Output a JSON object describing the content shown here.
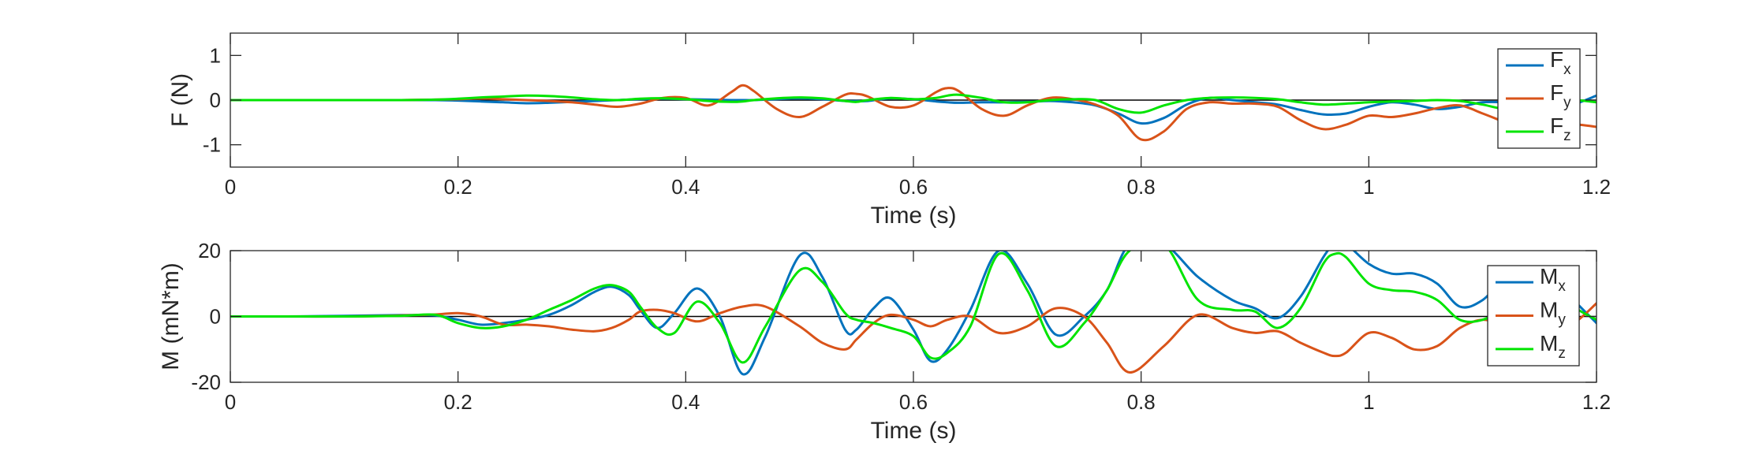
{
  "chart_data": [
    {
      "type": "line",
      "title": "",
      "xlabel": "Time (s)",
      "ylabel": "F (N)",
      "xlim": [
        0,
        1.2
      ],
      "ylim": [
        -1.5,
        1.5
      ],
      "xticks": [
        0,
        0.2,
        0.4,
        0.6,
        0.8,
        1,
        1.2
      ],
      "xtick_labels": [
        "0",
        "0.2",
        "0.4",
        "0.6",
        "0.8",
        "1",
        "1.2"
      ],
      "yticks": [
        1,
        0,
        -1
      ],
      "ytick_labels": [
        "1",
        "0",
        "-1"
      ],
      "zero_line": true,
      "grid": false,
      "legend_position": "right",
      "x": [
        0,
        0.05,
        0.1,
        0.15,
        0.18,
        0.2,
        0.22,
        0.24,
        0.26,
        0.28,
        0.3,
        0.32,
        0.34,
        0.36,
        0.38,
        0.4,
        0.42,
        0.44,
        0.45,
        0.46,
        0.48,
        0.5,
        0.52,
        0.54,
        0.55,
        0.56,
        0.58,
        0.6,
        0.62,
        0.63,
        0.64,
        0.66,
        0.68,
        0.7,
        0.72,
        0.74,
        0.76,
        0.78,
        0.8,
        0.82,
        0.84,
        0.86,
        0.88,
        0.9,
        0.92,
        0.94,
        0.96,
        0.98,
        1,
        1.02,
        1.04,
        1.06,
        1.08,
        1.1,
        1.12,
        1.14,
        1.16,
        1.18,
        1.2
      ],
      "series": [
        {
          "name": "F_x",
          "label_main": "F",
          "label_sub": "x",
          "color": "#0072BD",
          "values": [
            0,
            0,
            0,
            0,
            0,
            -0.01,
            -0.03,
            -0.05,
            -0.07,
            -0.06,
            -0.04,
            -0.02,
            0,
            0.02,
            0.03,
            0.02,
            0.01,
            0,
            0,
            0,
            0.02,
            0.04,
            0.02,
            -0.02,
            -0.02,
            -0.02,
            0.04,
            0.02,
            -0.03,
            -0.05,
            -0.06,
            -0.05,
            -0.05,
            -0.04,
            -0.02,
            -0.05,
            -0.12,
            -0.3,
            -0.52,
            -0.4,
            -0.1,
            0.05,
            0,
            -0.05,
            -0.1,
            -0.22,
            -0.32,
            -0.3,
            -0.15,
            -0.05,
            -0.1,
            -0.2,
            -0.15,
            -0.05,
            -0.05,
            -0.1,
            -0.25,
            -0.1,
            0.1
          ]
        },
        {
          "name": "F_y",
          "label_main": "F",
          "label_sub": "y",
          "color": "#D95319",
          "values": [
            0,
            0,
            0,
            0,
            0.01,
            0.02,
            0.04,
            0.02,
            0,
            -0.02,
            -0.05,
            -0.1,
            -0.15,
            -0.08,
            0.05,
            0.05,
            -0.12,
            0.18,
            0.33,
            0.2,
            -0.2,
            -0.38,
            -0.15,
            0.12,
            0.14,
            0.08,
            -0.15,
            -0.12,
            0.18,
            0.27,
            0.2,
            -0.2,
            -0.35,
            -0.12,
            0.05,
            0.02,
            -0.1,
            -0.35,
            -0.88,
            -0.7,
            -0.2,
            -0.05,
            -0.08,
            -0.08,
            -0.15,
            -0.45,
            -0.65,
            -0.55,
            -0.35,
            -0.38,
            -0.3,
            -0.18,
            -0.12,
            -0.3,
            -0.5,
            -0.7,
            -0.65,
            -0.55,
            -0.6
          ]
        },
        {
          "name": "F_z",
          "label_main": "F",
          "label_sub": "z",
          "color": "#00E400",
          "values": [
            0,
            0,
            0,
            0,
            0.01,
            0.03,
            0.06,
            0.08,
            0.1,
            0.09,
            0.06,
            0.02,
            0,
            0.03,
            0.04,
            0.02,
            -0.02,
            -0.04,
            -0.03,
            0,
            0.04,
            0.06,
            0.04,
            -0.02,
            -0.04,
            0,
            0.05,
            0.02,
            0.05,
            0.1,
            0.12,
            0.05,
            -0.05,
            -0.05,
            0,
            0.02,
            0,
            -0.2,
            -0.28,
            -0.12,
            0,
            0.05,
            0.06,
            0.05,
            0.02,
            -0.05,
            -0.1,
            -0.08,
            -0.05,
            -0.03,
            -0.02,
            0,
            -0.02,
            -0.1,
            -0.2,
            -0.15,
            -0.05,
            0,
            -0.05
          ]
        }
      ]
    },
    {
      "type": "line",
      "title": "",
      "xlabel": "Time (s)",
      "ylabel": "M (mN*m)",
      "xlim": [
        0,
        1.2
      ],
      "ylim": [
        -20,
        20
      ],
      "xticks": [
        0,
        0.2,
        0.4,
        0.6,
        0.8,
        1,
        1.2
      ],
      "xtick_labels": [
        "0",
        "0.2",
        "0.4",
        "0.6",
        "0.8",
        "1",
        "1.2"
      ],
      "yticks": [
        20,
        0,
        -20
      ],
      "ytick_labels": [
        "20",
        "0",
        "-20"
      ],
      "zero_line": true,
      "grid": false,
      "legend_position": "right",
      "x": [
        0,
        0.05,
        0.1,
        0.15,
        0.18,
        0.2,
        0.22,
        0.24,
        0.26,
        0.28,
        0.3,
        0.32,
        0.335,
        0.35,
        0.36,
        0.375,
        0.39,
        0.41,
        0.43,
        0.45,
        0.47,
        0.5,
        0.52,
        0.54,
        0.55,
        0.565,
        0.58,
        0.6,
        0.615,
        0.63,
        0.65,
        0.675,
        0.7,
        0.725,
        0.75,
        0.77,
        0.79,
        0.82,
        0.85,
        0.88,
        0.9,
        0.92,
        0.94,
        0.96,
        0.97,
        0.98,
        1,
        1.02,
        1.04,
        1.06,
        1.08,
        1.1,
        1.12,
        1.14,
        1.16,
        1.18,
        1.2
      ],
      "series": [
        {
          "name": "M_x",
          "label_main": "M",
          "label_sub": "x",
          "color": "#0072BD",
          "values": [
            0,
            0,
            0.2,
            0.4,
            0.3,
            -1,
            -2.5,
            -2,
            -1,
            0.5,
            3.5,
            7.5,
            9,
            6.5,
            2,
            -3.5,
            1,
            8.5,
            0,
            -17.5,
            -6,
            18.5,
            12,
            -4,
            -4,
            2.5,
            5.5,
            -4,
            -13.5,
            -10,
            2,
            20,
            10,
            -5.5,
            0,
            8,
            22,
            22,
            12,
            5,
            2.5,
            -0.5,
            6,
            18,
            22,
            22,
            16,
            13,
            13,
            10,
            3,
            5,
            12,
            15,
            13,
            5,
            -2
          ]
        },
        {
          "name": "M_y",
          "label_main": "M",
          "label_sub": "y",
          "color": "#D95319",
          "values": [
            0,
            0,
            0,
            0.3,
            0.6,
            1,
            0,
            -2.5,
            -2.5,
            -3,
            -4,
            -4.5,
            -3.5,
            -1,
            1.5,
            2,
            1,
            -1.5,
            1,
            3,
            3,
            -3,
            -8,
            -10,
            -7,
            -2,
            0.5,
            -1,
            -3,
            -1,
            0,
            -5,
            -3,
            2.5,
            0,
            -8,
            -17,
            -9,
            0.5,
            -3.5,
            -5,
            -4.5,
            -8,
            -11,
            -12,
            -11,
            -5,
            -6.5,
            -10,
            -9,
            -3.5,
            -1,
            -3,
            -5,
            -4,
            -2,
            4
          ]
        },
        {
          "name": "M_z",
          "label_main": "M",
          "label_sub": "z",
          "color": "#00E400",
          "values": [
            0,
            0,
            0,
            0.2,
            0.5,
            -2,
            -3.5,
            -3,
            -1,
            2,
            5,
            8.5,
            9.5,
            7.5,
            3,
            -3.5,
            -5,
            4.5,
            -2,
            -14,
            -3,
            14,
            10.5,
            1,
            -1,
            -2,
            -3.5,
            -6,
            -12.5,
            -11,
            -3,
            19,
            8,
            -9,
            -2,
            8,
            20,
            22,
            5,
            2,
            1.5,
            -3.5,
            2.5,
            16,
            19,
            18,
            10,
            8,
            7.5,
            5,
            -1,
            -1,
            3,
            12,
            10,
            3,
            -1
          ]
        }
      ]
    }
  ]
}
